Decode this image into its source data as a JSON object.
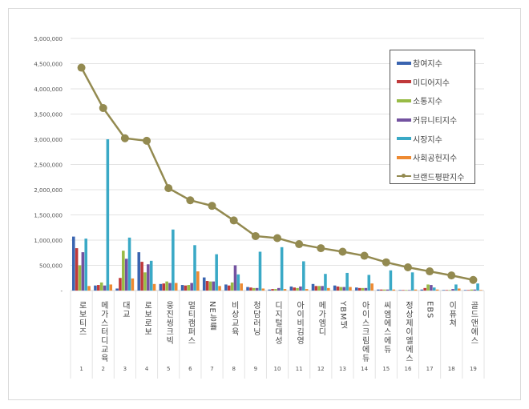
{
  "chart_data": {
    "type": "bar",
    "categories": [
      "로보티즈",
      "메가스터디교육",
      "대교",
      "로보로보",
      "웅진씽크빅",
      "멀티캠퍼스",
      "NE능률",
      "비상교육",
      "청담러닝",
      "디지털대성",
      "아이비김영",
      "메가엠디",
      "YBM넷",
      "아이스크림에듀",
      "씨엠에스에듀",
      "정상제이엘에스",
      "EBS",
      "이퓨쳐",
      "골드앤에스"
    ],
    "ranks": [
      "1",
      "2",
      "3",
      "4",
      "5",
      "6",
      "7",
      "8",
      "9",
      "10",
      "11",
      "12",
      "13",
      "14",
      "15",
      "16",
      "17",
      "18",
      "19"
    ],
    "ylim": [
      0,
      5000000
    ],
    "yticks": [
      0,
      500000,
      1000000,
      1500000,
      2000000,
      2500000,
      3000000,
      3500000,
      4000000,
      4500000,
      5000000
    ],
    "ytick_labels": [
      "-",
      "500,000",
      "1,000,000",
      "1,500,000",
      "2,000,000",
      "2,500,000",
      "3,000,000",
      "3,500,000",
      "4,000,000",
      "4,500,000",
      "5,000,000"
    ],
    "grid": true,
    "legend": "top-right",
    "series": [
      {
        "name": "참여지수",
        "type": "bar",
        "color": "#3a64b0",
        "values": [
          1070000,
          100000,
          40000,
          760000,
          130000,
          110000,
          260000,
          120000,
          70000,
          20000,
          80000,
          130000,
          100000,
          60000,
          20000,
          10000,
          20000,
          10000,
          10000
        ]
      },
      {
        "name": "미디어지수",
        "type": "bar",
        "color": "#c0393a",
        "values": [
          840000,
          110000,
          250000,
          570000,
          140000,
          100000,
          190000,
          100000,
          60000,
          30000,
          60000,
          90000,
          80000,
          50000,
          20000,
          10000,
          50000,
          10000,
          10000
        ]
      },
      {
        "name": "소통지수",
        "type": "bar",
        "color": "#98bb45",
        "values": [
          500000,
          160000,
          790000,
          360000,
          180000,
          110000,
          180000,
          160000,
          50000,
          30000,
          50000,
          90000,
          70000,
          50000,
          20000,
          10000,
          120000,
          10000,
          20000
        ]
      },
      {
        "name": "커뮤니티지수",
        "type": "bar",
        "color": "#7352a0",
        "values": [
          760000,
          100000,
          630000,
          520000,
          150000,
          150000,
          180000,
          500000,
          50000,
          50000,
          80000,
          90000,
          70000,
          50000,
          20000,
          10000,
          110000,
          30000,
          20000
        ]
      },
      {
        "name": "시장지수",
        "type": "bar",
        "color": "#3aa9c6",
        "values": [
          1030000,
          3000000,
          1050000,
          590000,
          1210000,
          900000,
          720000,
          320000,
          770000,
          860000,
          580000,
          330000,
          350000,
          310000,
          400000,
          360000,
          60000,
          120000,
          140000
        ]
      },
      {
        "name": "사회공헌지수",
        "type": "bar",
        "color": "#ee8a32",
        "values": [
          90000,
          120000,
          240000,
          130000,
          150000,
          380000,
          90000,
          140000,
          40000,
          30000,
          30000,
          50000,
          70000,
          140000,
          20000,
          20000,
          20000,
          40000,
          10000
        ]
      },
      {
        "name": "브랜드평판지수",
        "type": "line",
        "color": "#938a50",
        "values": [
          4420000,
          3620000,
          3020000,
          2970000,
          2030000,
          1790000,
          1680000,
          1390000,
          1080000,
          1040000,
          920000,
          840000,
          770000,
          690000,
          560000,
          460000,
          380000,
          300000,
          210000
        ]
      }
    ]
  }
}
